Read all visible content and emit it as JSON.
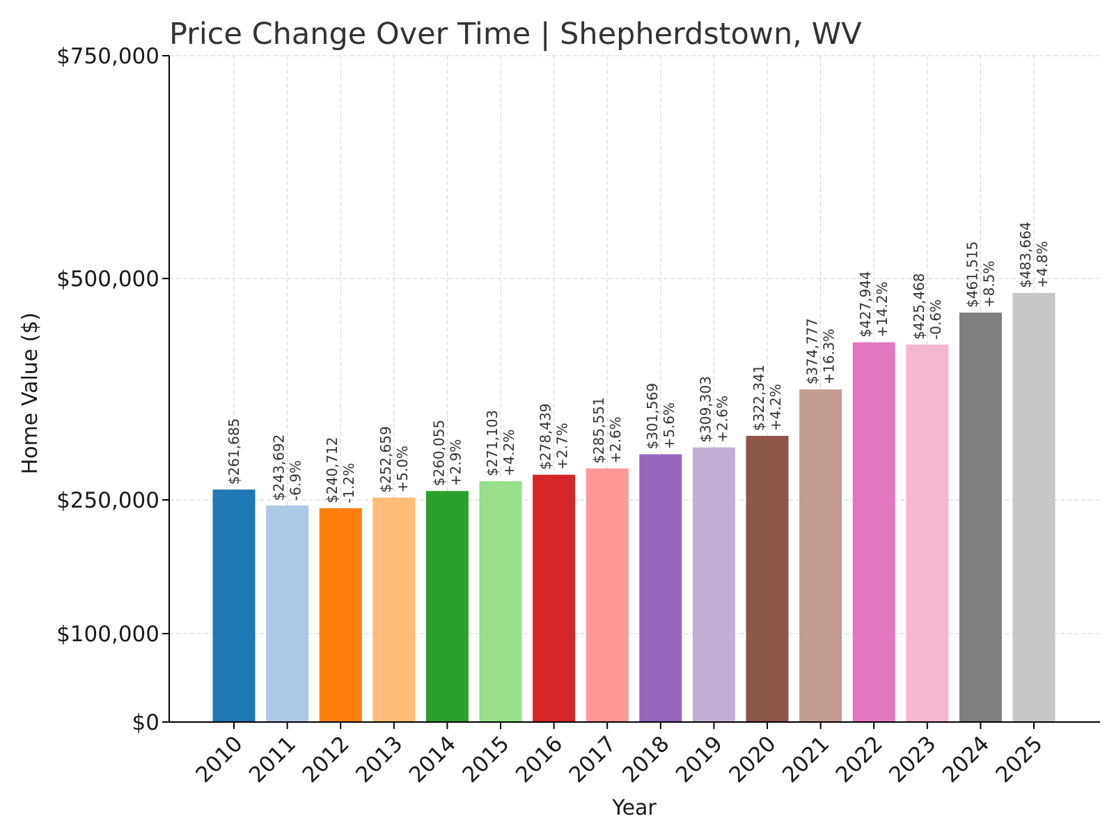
{
  "chart_data": {
    "type": "bar",
    "title": "Price Change Over Time | Shepherdstown, WV",
    "xlabel": "Year",
    "ylabel": "Home Value ($)",
    "y_tick_values": [
      0,
      100000,
      250000,
      500000,
      750000
    ],
    "y_tick_labels": [
      "$0",
      "$100,000",
      "$250,000",
      "$500,000",
      "$750,000"
    ],
    "categories": [
      "2010",
      "2011",
      "2012",
      "2013",
      "2014",
      "2015",
      "2016",
      "2017",
      "2018",
      "2019",
      "2020",
      "2021",
      "2022",
      "2023",
      "2024",
      "2025"
    ],
    "values": [
      261685,
      243692,
      240712,
      252659,
      260055,
      271103,
      278439,
      285551,
      301569,
      309303,
      322341,
      374777,
      427944,
      425468,
      461515,
      483664
    ],
    "value_labels": [
      "$261,685",
      "$243,692",
      "$240,712",
      "$252,659",
      "$260,055",
      "$271,103",
      "$278,439",
      "$285,551",
      "$301,569",
      "$309,303",
      "$322,341",
      "$374,777",
      "$427,944",
      "$425,468",
      "$461,515",
      "$483,664"
    ],
    "change_labels": [
      "",
      "-6.9%",
      "-1.2%",
      "+5.0%",
      "+2.9%",
      "+4.2%",
      "+2.7%",
      "+2.6%",
      "+5.6%",
      "+2.6%",
      "+4.2%",
      "+16.3%",
      "+14.2%",
      "-0.6%",
      "+8.5%",
      "+4.8%"
    ],
    "colors": [
      "#1f77b4",
      "#aec7e8",
      "#ff7f0e",
      "#ffbb78",
      "#2ca02c",
      "#98df8a",
      "#d62728",
      "#ff9896",
      "#9467bd",
      "#c5b0d5",
      "#8c564b",
      "#c49c94",
      "#e377c2",
      "#f7b6d2",
      "#7f7f7f",
      "#c7c7c7"
    ],
    "grid": true
  }
}
